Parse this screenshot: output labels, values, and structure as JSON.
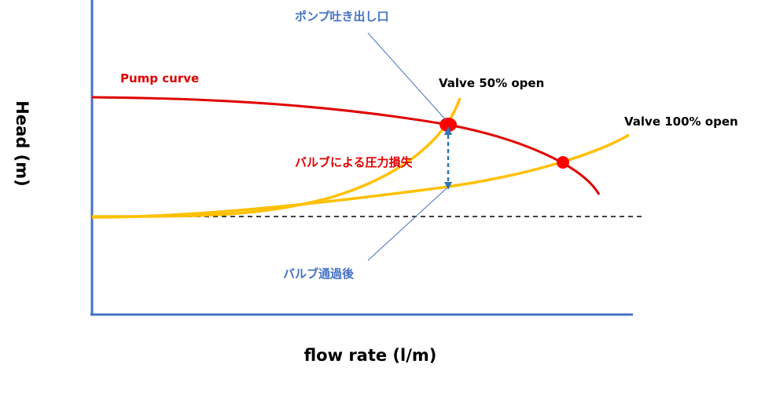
{
  "diagram": {
    "x_axis_label": "flow rate (l/m)",
    "y_axis_label": "Head (m)",
    "pump_curve_label": "Pump curve",
    "valve_50_label": "Valve 50% open",
    "valve_100_label": "Valve 100% open",
    "pump_outlet_label": "ポンプ吐き出し口",
    "valve_after_label": "バルブ通過後",
    "pressure_loss_label": "バルブによる圧力損失"
  },
  "colors": {
    "axis": "#4472c4",
    "pump_curve": "#e00000",
    "system_curve": "#ffc000",
    "operating_point": "#ff0000",
    "static_head_line": "#000000",
    "callout_line": "#4472c4",
    "loss_arrow": "#2e75b6"
  }
}
